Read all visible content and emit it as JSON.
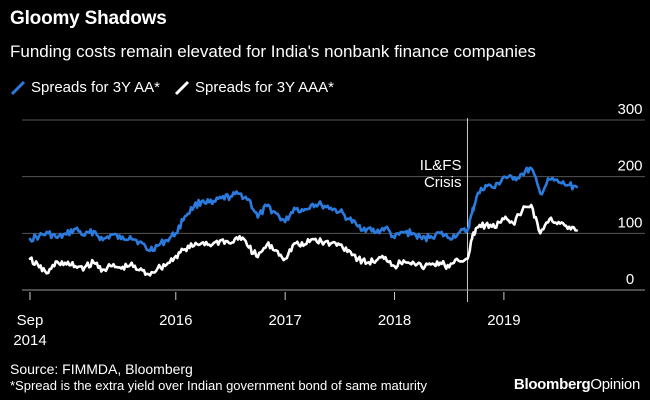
{
  "header": {
    "title": "Gloomy Shadows",
    "subtitle": "Funding costs remain elevated for India's nonbank finance companies"
  },
  "footer": {
    "source": "Source: FIMMDA, Bloomberg",
    "footnote": "*Spread is the extra yield over Indian government bond of same maturity",
    "brand_main": "Bloomberg",
    "brand_sub": "Opinion"
  },
  "chart_data": {
    "type": "line",
    "title": "Gloomy Shadows",
    "subtitle": "Funding costs remain elevated for India's nonbank finance companies",
    "xlabel": "",
    "ylabel": "",
    "xlim": [
      2014.667,
      2019.833
    ],
    "ylim": [
      0,
      300
    ],
    "y_ticks": [
      0,
      100,
      200,
      300
    ],
    "y_tick_labels": [
      "0",
      "100",
      "200",
      "300"
    ],
    "y_axis_position": "right",
    "x_ticks": [
      {
        "value": 2014.667,
        "label": "Sep",
        "label2": "2014"
      },
      {
        "value": 2016.0,
        "label": "2016"
      },
      {
        "value": 2017.0,
        "label": "2017"
      },
      {
        "value": 2018.0,
        "label": "2018"
      },
      {
        "value": 2019.0,
        "label": "2019"
      }
    ],
    "grid": "horizontal",
    "annotations": [
      {
        "x": 2018.667,
        "lines": [
          "IL&FS",
          "Crisis"
        ]
      }
    ],
    "series": [
      {
        "name": "Spreads for 3Y AA*",
        "color": "#2b7bde",
        "x": [
          2014.667,
          2014.75,
          2014.833,
          2014.917,
          2015.0,
          2015.083,
          2015.167,
          2015.25,
          2015.333,
          2015.417,
          2015.5,
          2015.583,
          2015.667,
          2015.75,
          2015.833,
          2015.917,
          2016.0,
          2016.083,
          2016.167,
          2016.25,
          2016.333,
          2016.417,
          2016.5,
          2016.583,
          2016.667,
          2016.75,
          2016.833,
          2016.917,
          2017.0,
          2017.083,
          2017.167,
          2017.25,
          2017.333,
          2017.417,
          2017.5,
          2017.583,
          2017.667,
          2017.75,
          2017.833,
          2017.917,
          2018.0,
          2018.083,
          2018.167,
          2018.25,
          2018.333,
          2018.417,
          2018.5,
          2018.583,
          2018.667,
          2018.708,
          2018.75,
          2018.833,
          2018.917,
          2019.0,
          2019.083,
          2019.167,
          2019.25,
          2019.333,
          2019.417,
          2019.5,
          2019.583,
          2019.667
        ],
        "values": [
          90,
          95,
          100,
          92,
          98,
          108,
          96,
          104,
          88,
          98,
          90,
          95,
          85,
          70,
          78,
          88,
          100,
          130,
          148,
          158,
          152,
          162,
          165,
          170,
          160,
          128,
          148,
          135,
          120,
          145,
          140,
          152,
          150,
          145,
          138,
          125,
          112,
          108,
          102,
          110,
          92,
          102,
          100,
          90,
          95,
          100,
          92,
          100,
          105,
          135,
          165,
          185,
          180,
          200,
          195,
          205,
          215,
          170,
          195,
          190,
          185,
          182
        ]
      },
      {
        "name": "Spreads for 3Y AAA*",
        "color": "#ffffff",
        "x": [
          2014.667,
          2014.75,
          2014.833,
          2014.917,
          2015.0,
          2015.083,
          2015.167,
          2015.25,
          2015.333,
          2015.417,
          2015.5,
          2015.583,
          2015.667,
          2015.75,
          2015.833,
          2015.917,
          2016.0,
          2016.083,
          2016.167,
          2016.25,
          2016.333,
          2016.417,
          2016.5,
          2016.583,
          2016.667,
          2016.75,
          2016.833,
          2016.917,
          2017.0,
          2017.083,
          2017.167,
          2017.25,
          2017.333,
          2017.417,
          2017.5,
          2017.583,
          2017.667,
          2017.75,
          2017.833,
          2017.917,
          2018.0,
          2018.083,
          2018.167,
          2018.25,
          2018.333,
          2018.417,
          2018.5,
          2018.583,
          2018.667,
          2018.708,
          2018.75,
          2018.833,
          2018.917,
          2019.0,
          2019.083,
          2019.167,
          2019.25,
          2019.333,
          2019.417,
          2019.5,
          2019.583,
          2019.667
        ],
        "values": [
          55,
          40,
          30,
          50,
          45,
          42,
          40,
          48,
          36,
          42,
          38,
          44,
          35,
          28,
          38,
          45,
          60,
          72,
          78,
          84,
          80,
          88,
          82,
          95,
          75,
          58,
          80,
          70,
          55,
          82,
          78,
          90,
          85,
          82,
          80,
          70,
          55,
          48,
          52,
          58,
          42,
          52,
          50,
          40,
          45,
          48,
          40,
          52,
          55,
          90,
          110,
          115,
          110,
          125,
          118,
          140,
          150,
          100,
          125,
          120,
          108,
          105
        ]
      }
    ]
  }
}
